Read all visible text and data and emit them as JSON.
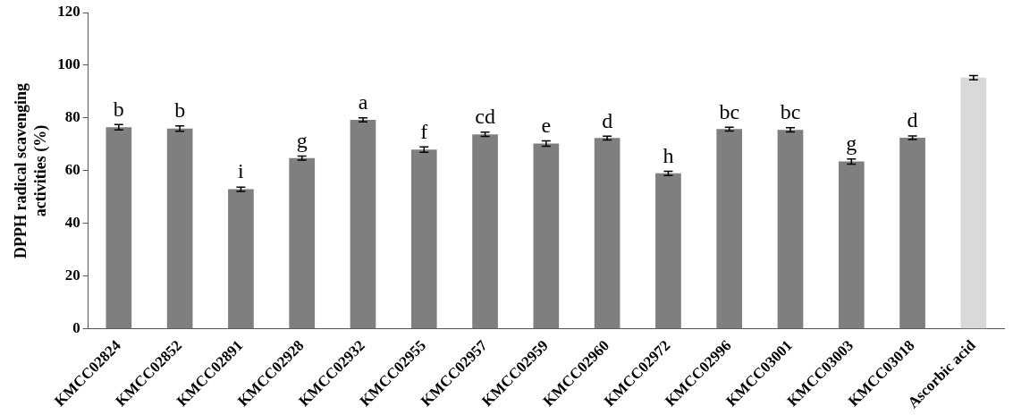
{
  "chart_data": {
    "type": "bar",
    "ylabel": "DPPH radical scavenging activities (%)",
    "categories": [
      "KMCC02824",
      "KMCC02852",
      "KMCC02891",
      "KMCC02928",
      "KMCC02932",
      "KMCC02955",
      "KMCC02957",
      "KMCC02959",
      "KMCC02960",
      "KMCC02972",
      "KMCC02996",
      "KMCC03001",
      "KMCC03003",
      "KMCC03018",
      "Ascorbic acid"
    ],
    "values": [
      76.5,
      76,
      53,
      64.8,
      79.3,
      68,
      73.8,
      70.3,
      72.4,
      59,
      75.8,
      75.5,
      63.5,
      72.5,
      95.3
    ],
    "errors": [
      1,
      1,
      0.8,
      0.8,
      0.8,
      1,
      0.8,
      1,
      0.7,
      0.8,
      0.7,
      0.8,
      1,
      0.7,
      0.8
    ],
    "colors": [
      "#7f7f7f",
      "#7f7f7f",
      "#7f7f7f",
      "#7f7f7f",
      "#7f7f7f",
      "#7f7f7f",
      "#7f7f7f",
      "#7f7f7f",
      "#7f7f7f",
      "#7f7f7f",
      "#7f7f7f",
      "#7f7f7f",
      "#7f7f7f",
      "#7f7f7f",
      "#d9d9d9"
    ],
    "ylim": [
      0,
      120
    ],
    "yticks": [
      0,
      20,
      40,
      60,
      80,
      100,
      120
    ],
    "grid": false,
    "legend": false,
    "annotations": [
      {
        "text": "b",
        "x": "KMCC02824",
        "y": 77.5
      },
      {
        "text": "b",
        "x": "KMCC02852",
        "y": 77
      },
      {
        "text": "i",
        "x": "KMCC02891",
        "y": 53.8
      },
      {
        "text": "g",
        "x": "KMCC02928",
        "y": 65.6
      },
      {
        "text": "a",
        "x": "KMCC02932",
        "y": 80.1
      },
      {
        "text": "f",
        "x": "KMCC02955",
        "y": 69
      },
      {
        "text": "cd",
        "x": "KMCC02957",
        "y": 74.6
      },
      {
        "text": "e",
        "x": "KMCC02959",
        "y": 71.3
      },
      {
        "text": "d",
        "x": "KMCC02960",
        "y": 73.1
      },
      {
        "text": "h",
        "x": "KMCC02972",
        "y": 59.8
      },
      {
        "text": "bc",
        "x": "KMCC02996",
        "y": 76.5
      },
      {
        "text": "bc",
        "x": "KMCC03001",
        "y": 76.3
      },
      {
        "text": "g",
        "x": "KMCC03003",
        "y": 64.5
      },
      {
        "text": "d",
        "x": "KMCC03018",
        "y": 73.2
      }
    ]
  }
}
